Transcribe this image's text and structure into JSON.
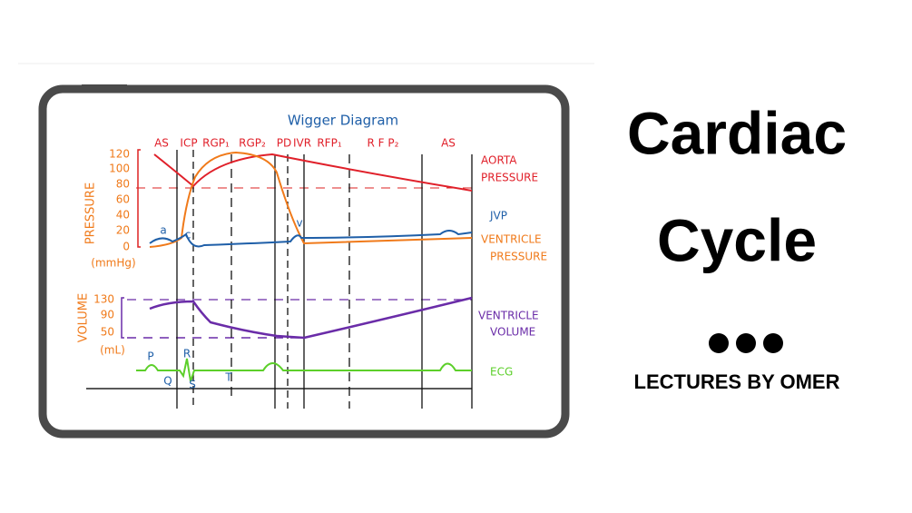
{
  "title": {
    "lines": [
      "Cardiac",
      "Cycle"
    ]
  },
  "subtitle": "LECTURES BY OMER",
  "diagram": {
    "title": "Wigger Diagram",
    "phases": [
      "AS",
      "ICP",
      "RGP₁",
      "RGP₂",
      "PD",
      "IVR",
      "RFP₁",
      "R F P₂",
      "AS"
    ],
    "pressure_axis": {
      "label": "PRESSURE",
      "unit": "(mmHg)",
      "ticks": [
        "120",
        "100",
        "80",
        "60",
        "40",
        "20",
        "0"
      ]
    },
    "volume_axis": {
      "label": "VOLUME",
      "unit": "(mL)",
      "ticks": [
        "130",
        "90",
        "50"
      ]
    },
    "curve_labels": {
      "aorta": [
        "AORTA",
        "PRESSURE"
      ],
      "jvp": "JVP",
      "ventricle_pressure": [
        "VENTRICLE",
        "PRESSURE"
      ],
      "ventricle_volume": [
        "VENTRICLE",
        "VOLUME"
      ],
      "ecg": "ECG"
    },
    "wave_letters": [
      "a",
      "c",
      "v",
      "P",
      "Q",
      "R",
      "S",
      "T"
    ]
  }
}
